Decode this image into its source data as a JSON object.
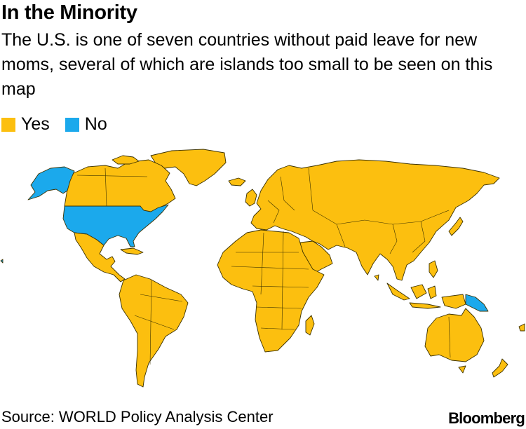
{
  "title": "In the Minority",
  "subtitle": "The U.S. is one of seven countries without paid leave for new moms, several of which are islands too small to be seen on this map",
  "legend": [
    {
      "label": "Yes",
      "color": "#fcbf0f"
    },
    {
      "label": "No",
      "color": "#1ba9ec"
    }
  ],
  "colors": {
    "yes": "#fcbf0f",
    "no": "#1ba9ec",
    "border": "#3b3100"
  },
  "map": {
    "visible_no_countries": [
      "United States",
      "Papua New Guinea"
    ]
  },
  "source": "Source: WORLD Policy Analysis Center",
  "logo": "Bloomberg"
}
